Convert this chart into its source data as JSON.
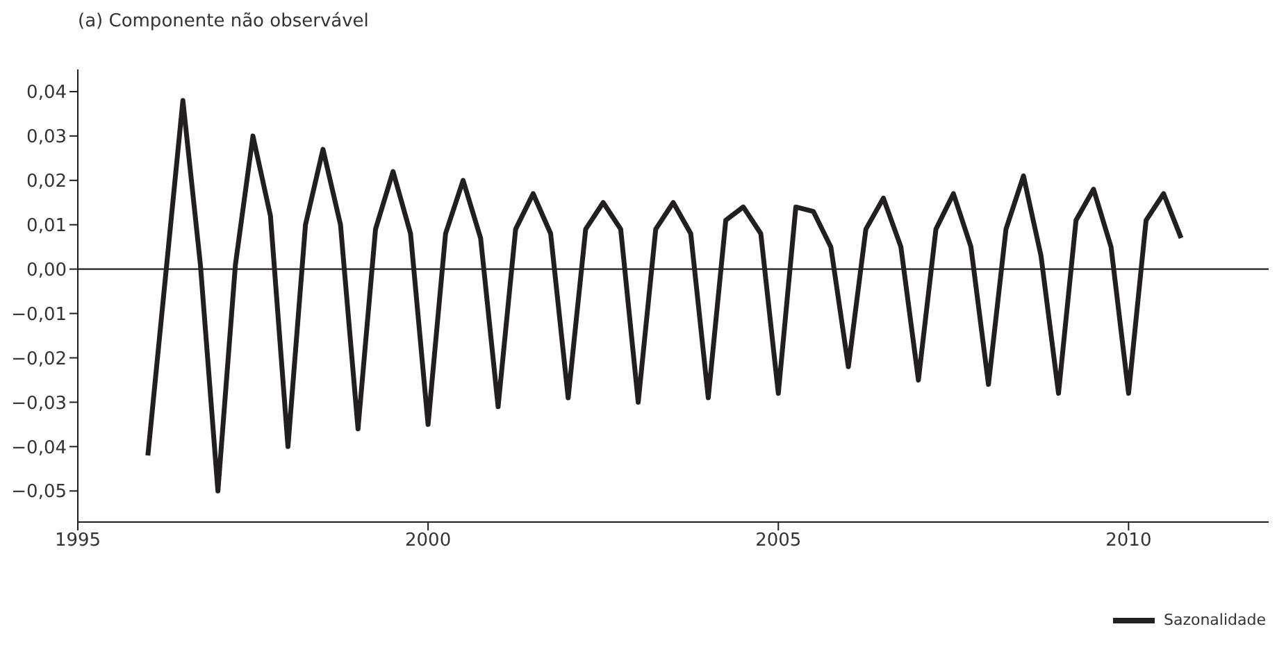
{
  "chart_data": {
    "type": "line",
    "title": "(a) Componente não observável",
    "x": [
      1996,
      1996.25,
      1996.5,
      1996.75,
      1997,
      1997.25,
      1997.5,
      1997.75,
      1998,
      1998.25,
      1998.5,
      1998.75,
      1999,
      1999.25,
      1999.5,
      1999.75,
      2000,
      2000.25,
      2000.5,
      2000.75,
      2001,
      2001.25,
      2001.5,
      2001.75,
      2002,
      2002.25,
      2002.5,
      2002.75,
      2003,
      2003.25,
      2003.5,
      2003.75,
      2004,
      2004.25,
      2004.5,
      2004.75,
      2005,
      2005.25,
      2005.5,
      2005.75,
      2006,
      2006.25,
      2006.5,
      2006.75,
      2007,
      2007.25,
      2007.5,
      2007.75,
      2008,
      2008.25,
      2008.5,
      2008.75,
      2009,
      2009.25,
      2009.5,
      2009.75,
      2010,
      2010.25,
      2010.5,
      2010.75
    ],
    "series": [
      {
        "name": "Sazonalidade",
        "color": "#231f20",
        "values": [
          -0.042,
          -0.002,
          0.038,
          0.001,
          -0.05,
          0.001,
          0.03,
          0.012,
          -0.04,
          0.01,
          0.027,
          0.01,
          -0.036,
          0.009,
          0.022,
          0.008,
          -0.035,
          0.008,
          0.02,
          0.007,
          -0.031,
          0.009,
          0.017,
          0.008,
          -0.029,
          0.009,
          0.015,
          0.009,
          -0.03,
          0.009,
          0.015,
          0.008,
          -0.029,
          0.011,
          0.014,
          0.008,
          -0.028,
          0.014,
          0.013,
          0.005,
          -0.022,
          0.009,
          0.016,
          0.005,
          -0.025,
          0.009,
          0.017,
          0.005,
          -0.026,
          0.009,
          0.021,
          0.003,
          -0.028,
          0.011,
          0.018,
          0.005,
          -0.028,
          0.011,
          0.017,
          0.007
        ]
      }
    ],
    "xlim": [
      1995,
      2012
    ],
    "xticks": [
      1995,
      2000,
      2005,
      2010
    ],
    "ylim": [
      -0.057,
      0.045
    ],
    "yticks": [
      {
        "value": 0.04,
        "label": "0,04"
      },
      {
        "value": 0.03,
        "label": "0,03"
      },
      {
        "value": 0.02,
        "label": "0,02"
      },
      {
        "value": 0.01,
        "label": "0,01"
      },
      {
        "value": 0,
        "label": "0,00"
      },
      {
        "value": -0.01,
        "label": "−0,01"
      },
      {
        "value": -0.02,
        "label": "−0,02"
      },
      {
        "value": -0.03,
        "label": "−0,03"
      },
      {
        "value": -0.04,
        "label": "−0,04"
      },
      {
        "value": -0.05,
        "label": "−0,05"
      }
    ],
    "ref_lines": [
      {
        "axis": "y",
        "value": 0,
        "color": "#231f20"
      }
    ],
    "grid": false,
    "legend": "bottom right",
    "marker": "none",
    "line_style": "solid"
  }
}
